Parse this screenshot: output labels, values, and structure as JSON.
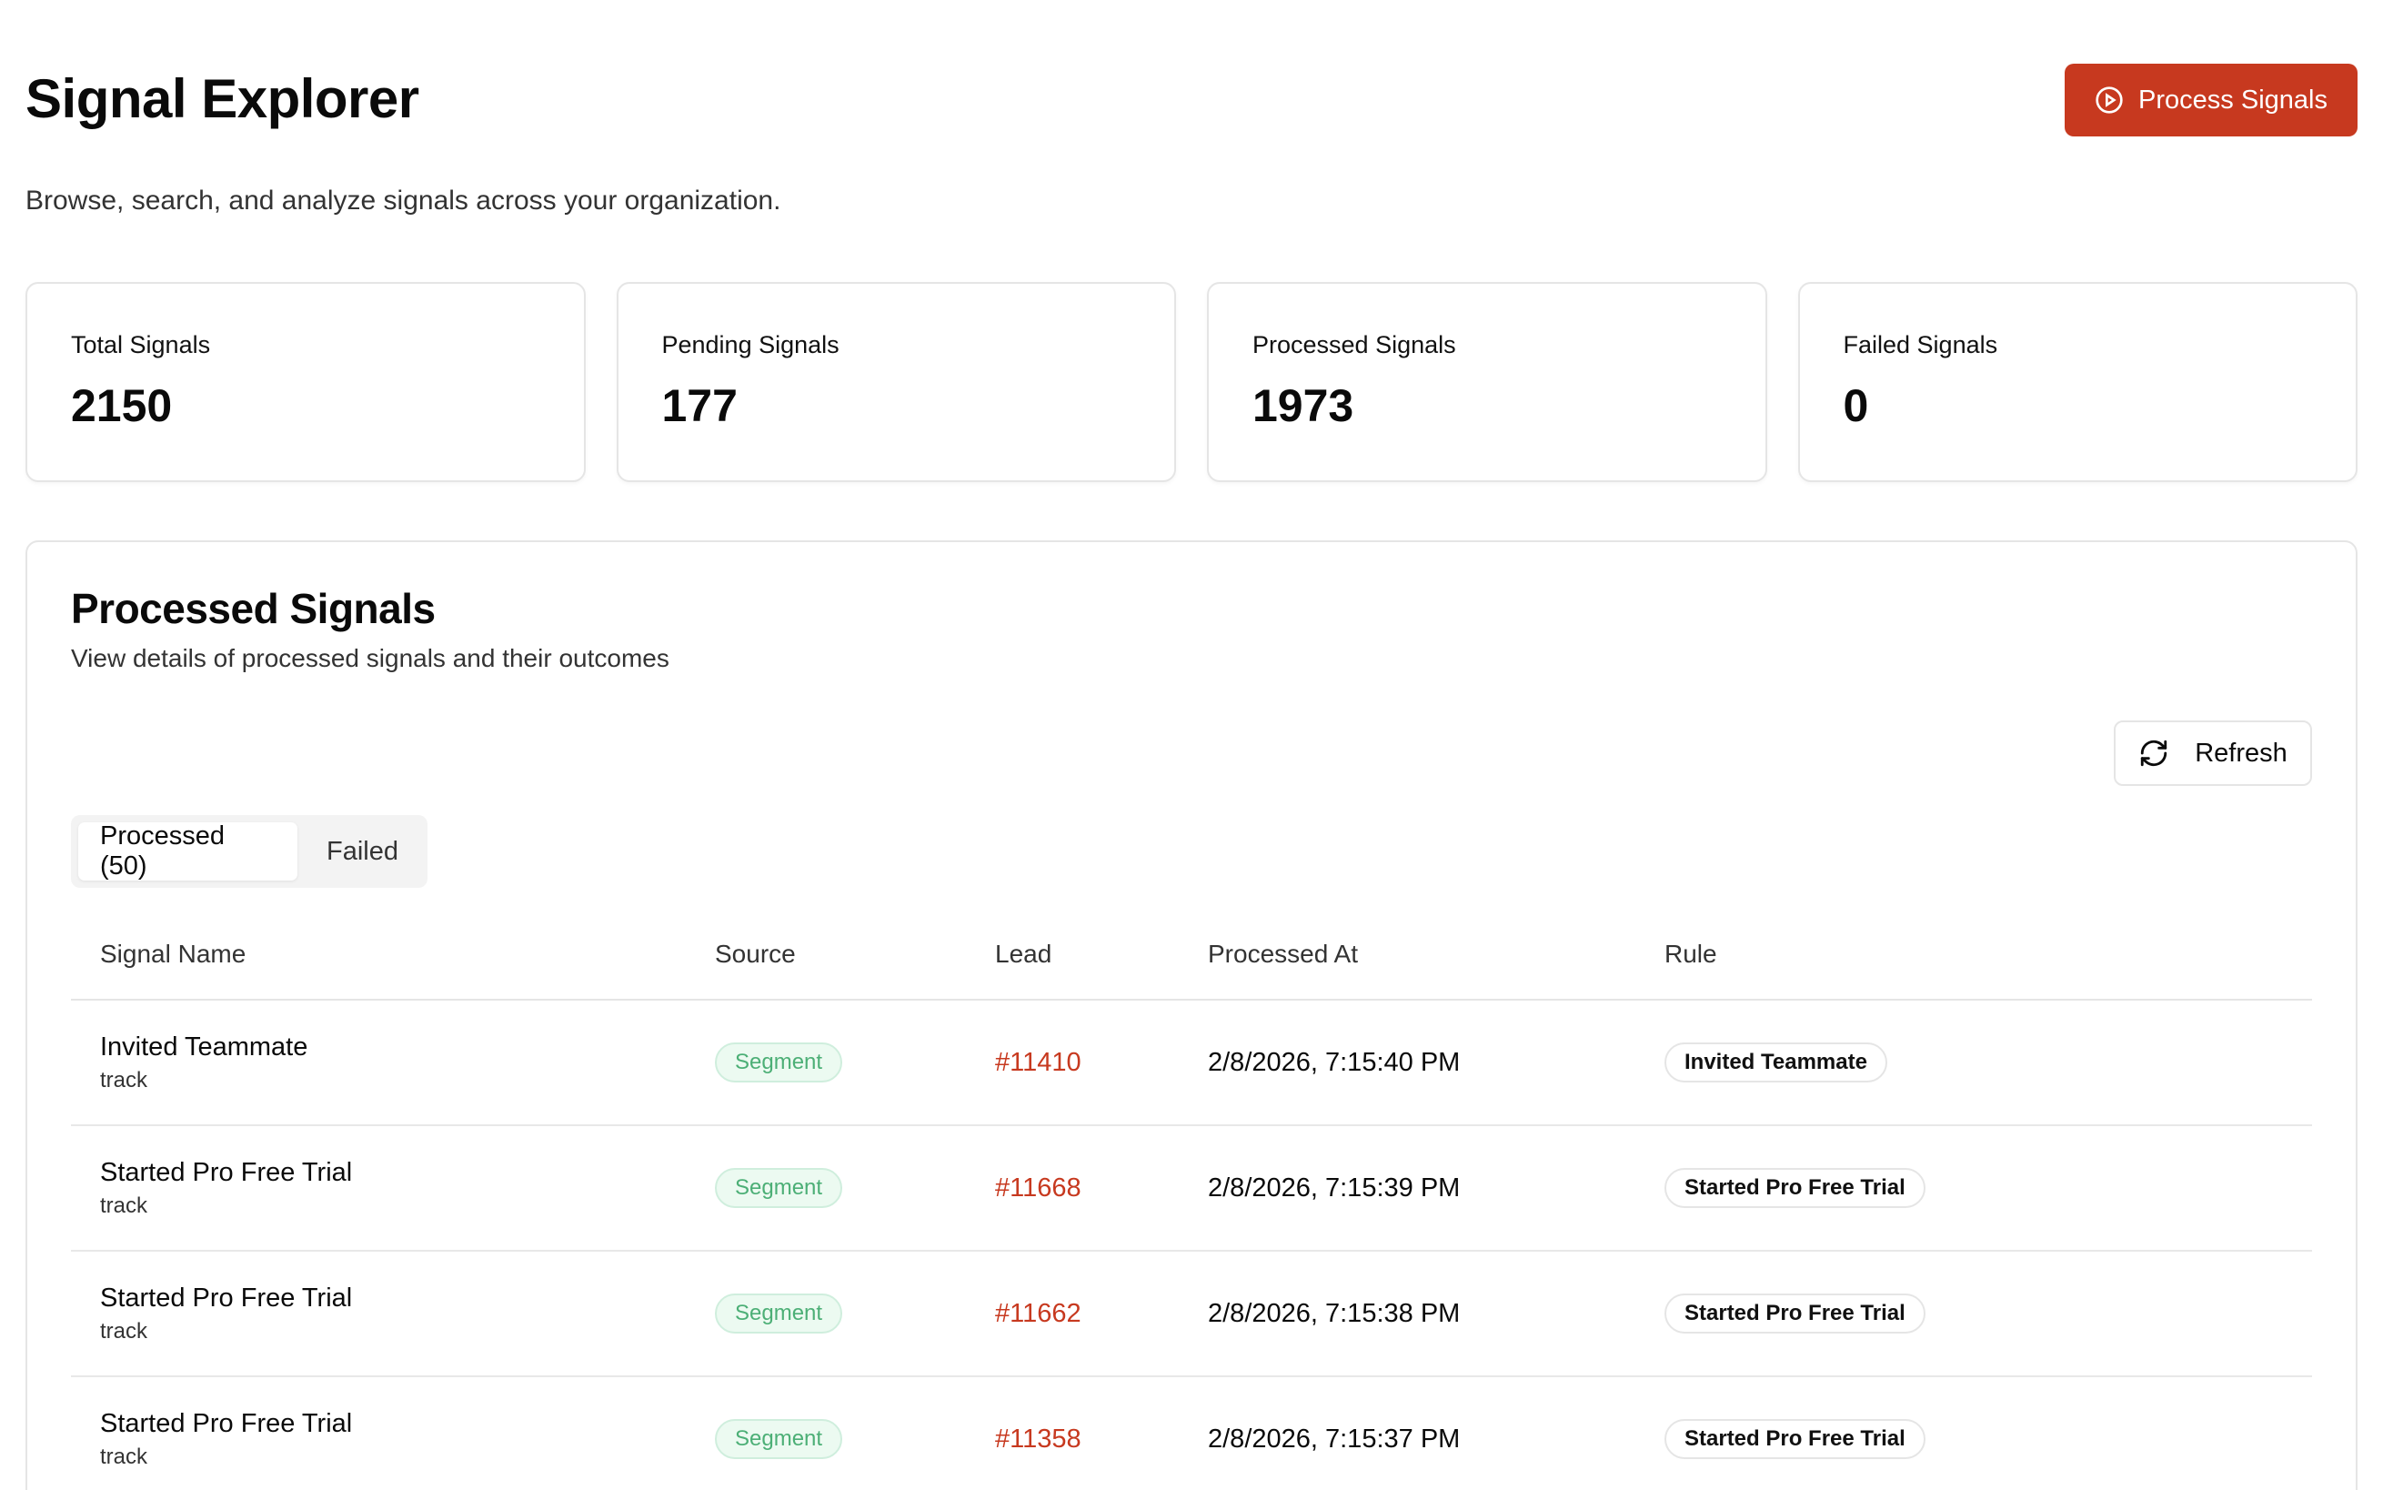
{
  "header": {
    "title": "Signal Explorer",
    "process_button_label": "Process Signals",
    "subtitle": "Browse, search, and analyze signals across your organization."
  },
  "stats": [
    {
      "label": "Total Signals",
      "value": "2150"
    },
    {
      "label": "Pending Signals",
      "value": "177"
    },
    {
      "label": "Processed Signals",
      "value": "1973"
    },
    {
      "label": "Failed Signals",
      "value": "0"
    }
  ],
  "panel": {
    "title": "Processed Signals",
    "description": "View details of processed signals and their outcomes",
    "refresh_label": "Refresh",
    "tabs": [
      {
        "label": "Processed (50)"
      },
      {
        "label": "Failed"
      }
    ]
  },
  "table": {
    "columns": [
      "Signal Name",
      "Source",
      "Lead",
      "Processed At",
      "Rule"
    ],
    "rows": [
      {
        "name": "Invited Teammate",
        "type": "track",
        "source": "Segment",
        "lead": "#11410",
        "processed_at": "2/8/2026, 7:15:40 PM",
        "rule": "Invited Teammate"
      },
      {
        "name": "Started Pro Free Trial",
        "type": "track",
        "source": "Segment",
        "lead": "#11668",
        "processed_at": "2/8/2026, 7:15:39 PM",
        "rule": "Started Pro Free Trial"
      },
      {
        "name": "Started Pro Free Trial",
        "type": "track",
        "source": "Segment",
        "lead": "#11662",
        "processed_at": "2/8/2026, 7:15:38 PM",
        "rule": "Started Pro Free Trial"
      },
      {
        "name": "Started Pro Free Trial",
        "type": "track",
        "source": "Segment",
        "lead": "#11358",
        "processed_at": "2/8/2026, 7:15:37 PM",
        "rule": "Started Pro Free Trial"
      }
    ]
  },
  "colors": {
    "accent": "#c7391f",
    "source_badge": "#4caf76"
  },
  "icons": {
    "process_button": "play-circle-icon",
    "refresh_button": "refresh-icon"
  }
}
